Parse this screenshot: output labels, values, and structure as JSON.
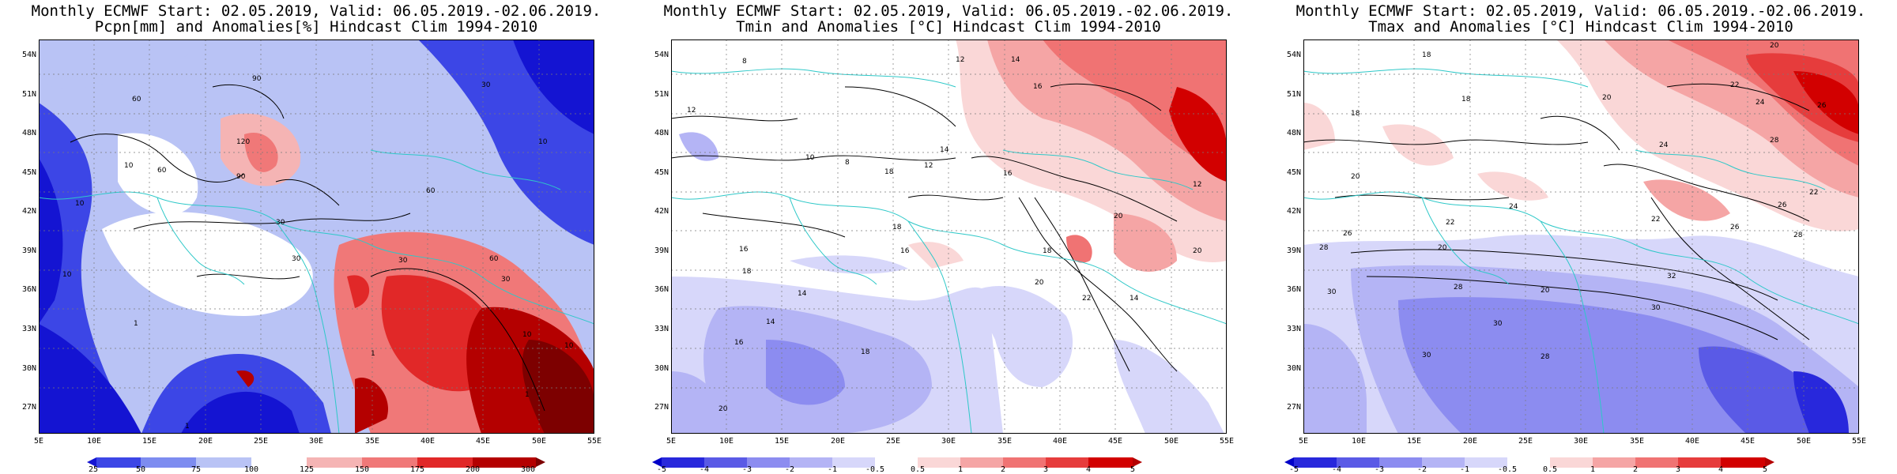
{
  "panels": [
    {
      "id": "pcpn",
      "title_line1": "Monthly ECMWF Start: 02.05.2019, Valid: 06.05.2019.-02.06.2019.",
      "title_line2": "Pcpn[mm] and Anomalies[%] Hindcast Clim 1994-2010",
      "colorbar_ticks": [
        "25",
        "50",
        "75",
        "100",
        "125",
        "150",
        "175",
        "200",
        "300"
      ],
      "colorbar_colors": [
        "#1414d2",
        "#3c46e6",
        "#7d8cf0",
        "#b9c3f5",
        "#ffffff",
        "#f5b4b4",
        "#f07878",
        "#e12828",
        "#b40000",
        "#7d0000"
      ],
      "contour_labels": [
        "60",
        "90",
        "30",
        "120",
        "10",
        "60",
        "90",
        "30",
        "10",
        "60",
        "30",
        "10",
        "30",
        "1",
        "10",
        "1",
        "10",
        "60",
        "30",
        "1",
        "1",
        "10"
      ]
    },
    {
      "id": "tmin",
      "title_line1": "Monthly ECMWF Start: 02.05.2019, Valid: 06.05.2019.-02.06.2019.",
      "title_line2": "Tmin and Anomalies [°C] Hindcast Clim 1994-2010",
      "colorbar_ticks": [
        "-5",
        "-4",
        "-3",
        "-2",
        "-1",
        "-0.5",
        "0.5",
        "1",
        "2",
        "3",
        "4",
        "5"
      ],
      "colorbar_colors": [
        "#0000c8",
        "#2828dc",
        "#5a5ae6",
        "#8c8cf0",
        "#b4b4f5",
        "#d7d7fa",
        "#ffffff",
        "#fad7d7",
        "#f5a5a5",
        "#f07373",
        "#e63c3c",
        "#d20000",
        "#b40000"
      ],
      "contour_labels": [
        "8",
        "12",
        "14",
        "16",
        "12",
        "10",
        "8",
        "12",
        "14",
        "16",
        "18",
        "18",
        "20",
        "16",
        "16",
        "18",
        "20",
        "22",
        "18",
        "14",
        "20",
        "20",
        "18",
        "12",
        "14",
        "16",
        "14"
      ]
    },
    {
      "id": "tmax",
      "title_line1": "Monthly ECMWF Start: 02.05.2019, Valid: 06.05.2019.-02.06.2019.",
      "title_line2": "Tmax and Anomalies [°C] Hindcast Clim 1994-2010",
      "colorbar_ticks": [
        "-5",
        "-4",
        "-3",
        "-2",
        "-1",
        "-0.5",
        "0.5",
        "1",
        "2",
        "3",
        "4",
        "5"
      ],
      "colorbar_colors": [
        "#0000c8",
        "#2828dc",
        "#5a5ae6",
        "#8c8cf0",
        "#b4b4f5",
        "#d7d7fa",
        "#ffffff",
        "#fad7d7",
        "#f5a5a5",
        "#f07373",
        "#e63c3c",
        "#d20000",
        "#b40000"
      ],
      "contour_labels": [
        "20",
        "18",
        "22",
        "24",
        "26",
        "18",
        "20",
        "24",
        "28",
        "26",
        "20",
        "22",
        "24",
        "26",
        "28",
        "30",
        "20",
        "22",
        "20",
        "26",
        "28",
        "30",
        "30",
        "28",
        "22",
        "30",
        "32",
        "28",
        "18"
      ]
    }
  ],
  "lat_labels": [
    "54N",
    "51N",
    "48N",
    "45N",
    "42N",
    "39N",
    "36N",
    "33N",
    "30N",
    "27N"
  ],
  "lon_labels": [
    "5E",
    "10E",
    "15E",
    "20E",
    "25E",
    "30E",
    "35E",
    "40E",
    "45E",
    "50E",
    "55E"
  ]
}
